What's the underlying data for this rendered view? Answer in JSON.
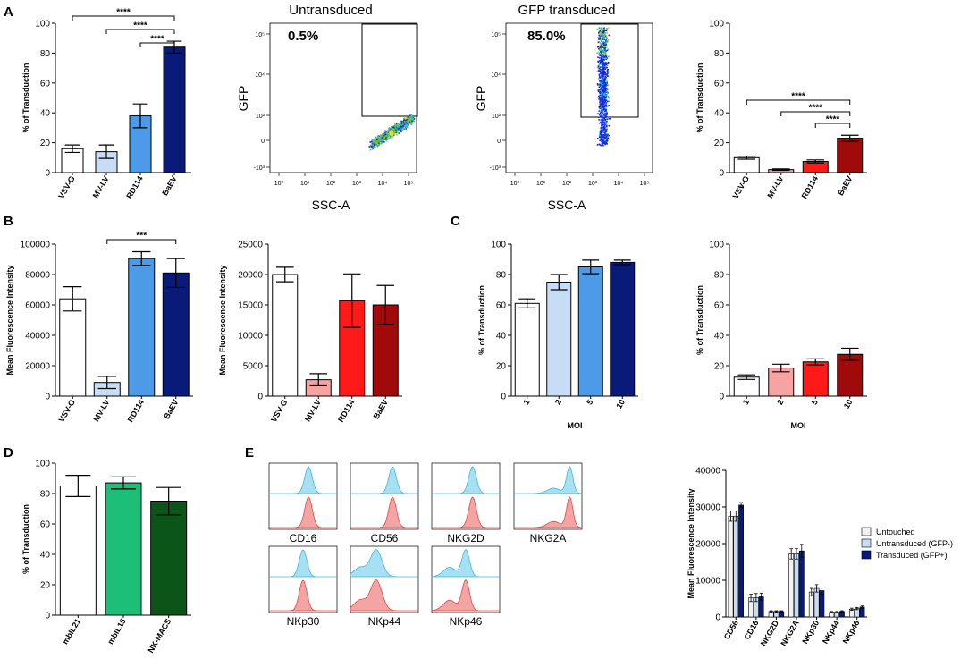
{
  "panel_labels": {
    "a": "A",
    "b": "B",
    "c": "C",
    "d": "D",
    "e": "E"
  },
  "flow": [
    {
      "title": "Untransduced",
      "percent": "0.5%",
      "xlabel": "SSC-A",
      "ylabel": "GFP"
    },
    {
      "title": "GFP transduced",
      "percent": "85.0%",
      "xlabel": "SSC-A",
      "ylabel": "GFP"
    }
  ],
  "flow_ticks": {
    "x": [
      "10⁰",
      "10¹",
      "10²",
      "10³",
      "10⁴",
      "10⁵"
    ],
    "y": [
      "-10³",
      "0",
      "10³",
      "10⁴",
      "10⁵"
    ]
  },
  "histograms": {
    "markers": [
      "CD16",
      "CD56",
      "NKG2D",
      "NKG2A",
      "NKp30",
      "NKp44",
      "NKp46"
    ],
    "colors": {
      "fill_top": "#a6e0f2",
      "stroke_top": "#3fb8dc",
      "fill_bottom": "#f5a4a4",
      "stroke_bottom": "#e04848"
    }
  },
  "chart_data": [
    {
      "id": "A_left",
      "type": "bar",
      "categories": [
        "VSV-G",
        "MV-LV",
        "RD114",
        "BaEV"
      ],
      "values": [
        16,
        14,
        38,
        84
      ],
      "errors": [
        2.5,
        4.5,
        8,
        4
      ],
      "colors": [
        "#ffffff",
        "#c8ddf5",
        "#4d9be8",
        "#0a1a78"
      ],
      "ylabel": "% of Transduction",
      "ylim": [
        0,
        100
      ],
      "yticks": [
        "0",
        "20",
        "40",
        "60",
        "80",
        "100"
      ],
      "significance": [
        {
          "from": 0,
          "to": 3,
          "label": "****"
        },
        {
          "from": 1,
          "to": 3,
          "label": "****"
        },
        {
          "from": 2,
          "to": 3,
          "label": "****"
        }
      ]
    },
    {
      "id": "A_right",
      "type": "bar",
      "categories": [
        "VSV-G",
        "MV-LV",
        "RD114",
        "BaEV"
      ],
      "values": [
        10,
        2,
        7.5,
        23
      ],
      "errors": [
        1,
        0.5,
        1,
        2
      ],
      "colors": [
        "#ffffff",
        "#f5a3a3",
        "#ff1a1a",
        "#a00a0a"
      ],
      "ylabel": "% of Transduction",
      "ylim": [
        0,
        100
      ],
      "yticks": [
        "0",
        "20",
        "40",
        "60",
        "80",
        "100"
      ],
      "significance": [
        {
          "from": 0,
          "to": 3,
          "label": "****"
        },
        {
          "from": 1,
          "to": 3,
          "label": "****"
        },
        {
          "from": 2,
          "to": 3,
          "label": "****"
        }
      ]
    },
    {
      "id": "B_left",
      "type": "bar",
      "categories": [
        "VSV-G",
        "MV-LV",
        "RD114",
        "BaEV"
      ],
      "values": [
        64000,
        9000,
        90500,
        81000
      ],
      "errors": [
        8000,
        4000,
        4500,
        9500
      ],
      "colors": [
        "#ffffff",
        "#c8ddf5",
        "#4d9be8",
        "#0a1a78"
      ],
      "ylabel": "Mean Fluorescence Intensity",
      "ylim": [
        0,
        100000
      ],
      "yticks": [
        "0",
        "20000",
        "40000",
        "60000",
        "80000",
        "100000"
      ],
      "significance": [
        {
          "from": 1,
          "to": 3,
          "label": "***"
        }
      ]
    },
    {
      "id": "B_right",
      "type": "bar",
      "categories": [
        "VSV-G",
        "MV-LV",
        "RD114",
        "BaEV"
      ],
      "values": [
        20000,
        2700,
        15700,
        15000
      ],
      "errors": [
        1200,
        1000,
        4400,
        3200
      ],
      "colors": [
        "#ffffff",
        "#f5a3a3",
        "#ff1a1a",
        "#a00a0a"
      ],
      "ylabel": "Mean Fluorescence Intensity",
      "ylim": [
        0,
        25000
      ],
      "yticks": [
        "0",
        "5000",
        "10000",
        "15000",
        "20000",
        "25000"
      ],
      "significance": []
    },
    {
      "id": "C_left",
      "type": "bar",
      "categories": [
        "1",
        "2",
        "5",
        "10"
      ],
      "values": [
        61,
        75,
        85,
        88
      ],
      "errors": [
        3,
        5,
        4.5,
        1.5
      ],
      "colors": [
        "#ffffff",
        "#c8ddf5",
        "#4d9be8",
        "#0a1a78"
      ],
      "xlabel": "MOI",
      "ylabel": "% of Transduction",
      "ylim": [
        0,
        100
      ],
      "yticks": [
        "0",
        "20",
        "40",
        "60",
        "80",
        "100"
      ],
      "significance": []
    },
    {
      "id": "C_right",
      "type": "bar",
      "categories": [
        "1",
        "2",
        "5",
        "10"
      ],
      "values": [
        12.5,
        18.5,
        22.5,
        27.5
      ],
      "errors": [
        1.5,
        2.5,
        2,
        4
      ],
      "colors": [
        "#ffffff",
        "#f5a3a3",
        "#ff1a1a",
        "#a00a0a"
      ],
      "xlabel": "MOI",
      "ylabel": "% of Transduction",
      "ylim": [
        0,
        100
      ],
      "yticks": [
        "0",
        "20",
        "40",
        "60",
        "80",
        "100"
      ],
      "significance": []
    },
    {
      "id": "D",
      "type": "bar",
      "categories": [
        "mbIL21",
        "mbIL15",
        "NK-MACS"
      ],
      "values": [
        85,
        87,
        75
      ],
      "errors": [
        7,
        4,
        9
      ],
      "colors": [
        "#ffffff",
        "#1dbf78",
        "#0b5518"
      ],
      "ylabel": "% of Transduction",
      "ylim": [
        0,
        100
      ],
      "yticks": [
        "0",
        "20",
        "40",
        "60",
        "80",
        "100"
      ],
      "significance": []
    },
    {
      "id": "E_right",
      "type": "bar",
      "categories": [
        "CD56",
        "CD16",
        "NKG2D",
        "NKG2A",
        "NKp30",
        "NKp44",
        "NKp46"
      ],
      "series": [
        {
          "name": "Untouched",
          "color": "#f2f2f2",
          "values": [
            27500,
            5200,
            1500,
            17200,
            6800,
            1300,
            2100
          ],
          "errors": [
            1400,
            1000,
            200,
            1400,
            1000,
            200,
            300
          ]
        },
        {
          "name": "Untransduced (GFP-)",
          "color": "#c8ddf5",
          "values": [
            27500,
            5300,
            1500,
            17200,
            7800,
            1300,
            2300
          ],
          "errors": [
            1400,
            1100,
            200,
            1400,
            1000,
            200,
            300
          ]
        },
        {
          "name": "Transduced (GFP+)",
          "color": "#0a1a78",
          "values": [
            30500,
            5500,
            1500,
            18000,
            7200,
            1500,
            2700
          ],
          "errors": [
            700,
            1000,
            200,
            1800,
            1000,
            200,
            300
          ]
        }
      ],
      "ylabel": "Mean Fluorescence Intensity",
      "ylim": [
        0,
        40000
      ],
      "yticks": [
        "0",
        "10000",
        "20000",
        "30000",
        "40000"
      ]
    }
  ]
}
